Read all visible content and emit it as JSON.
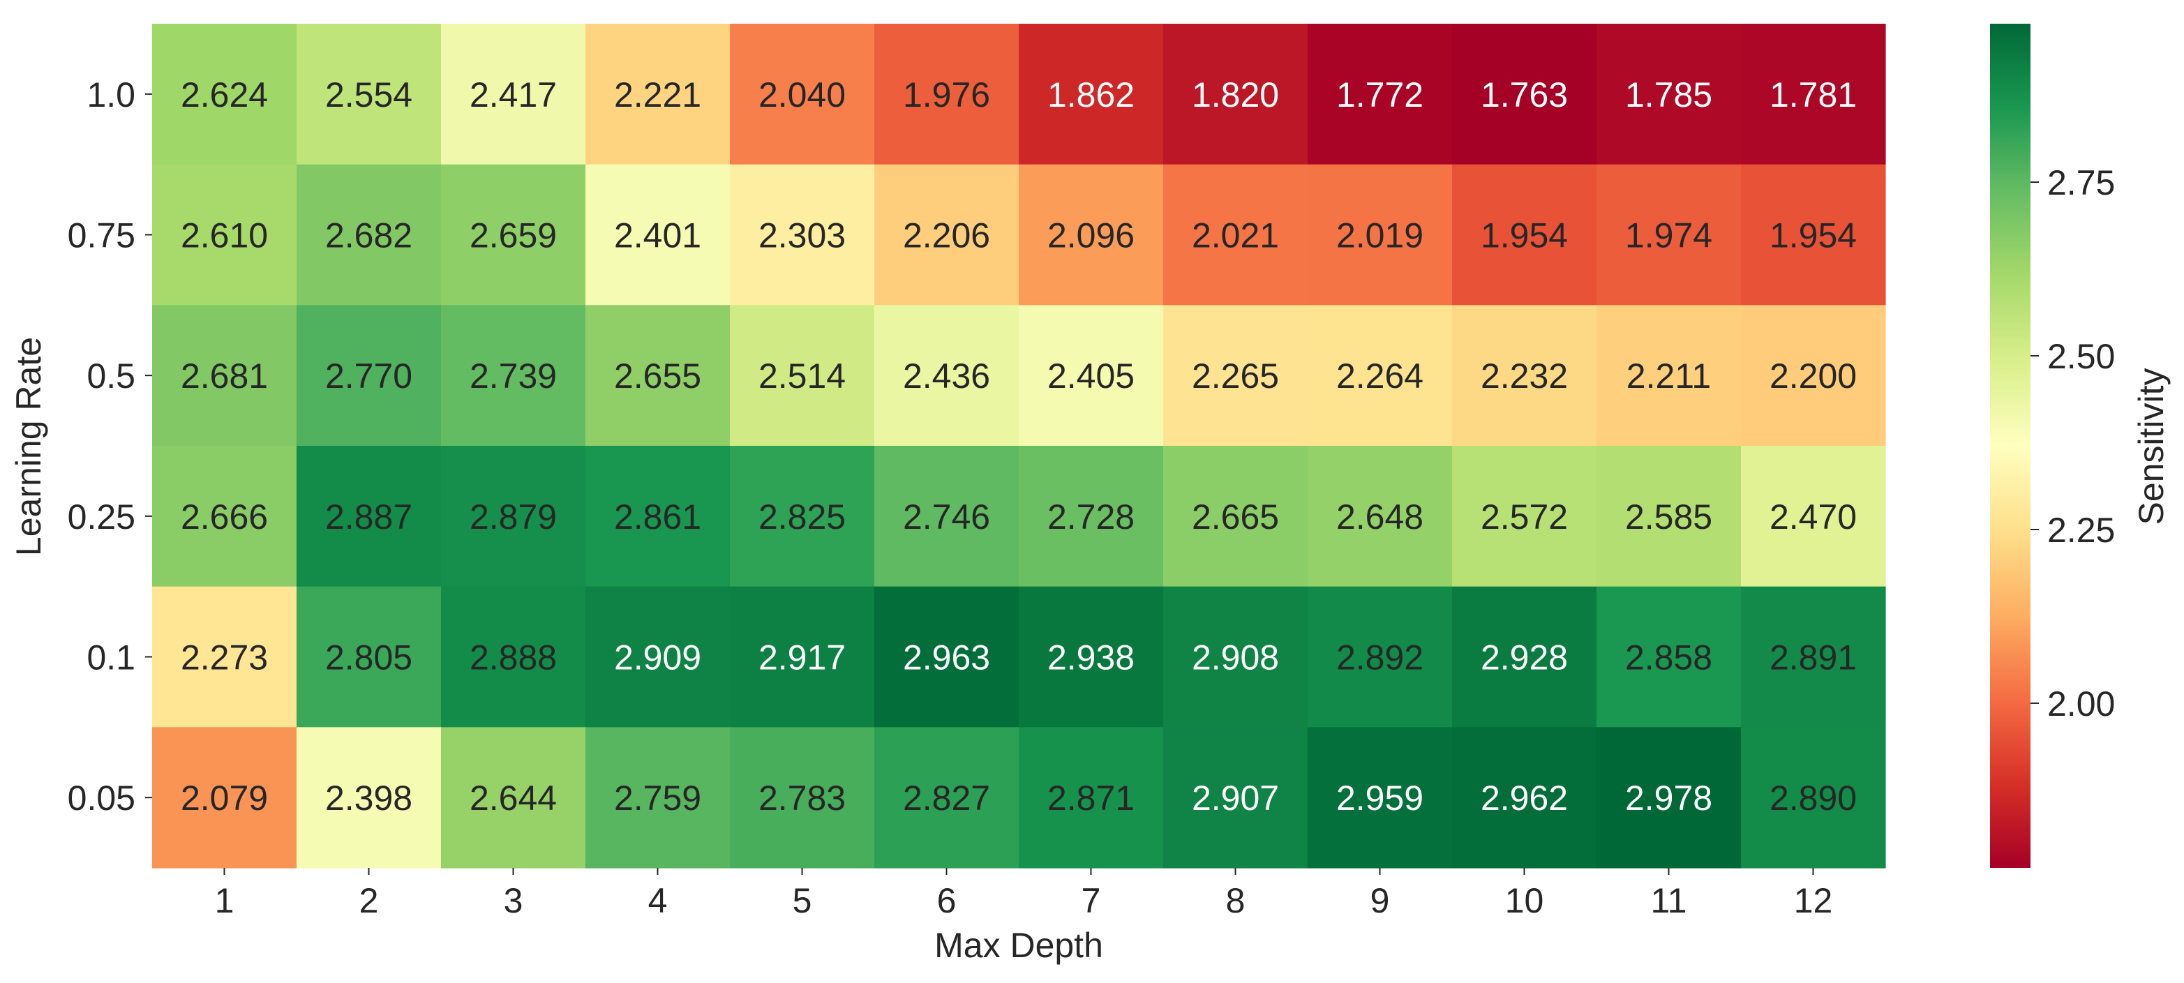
{
  "chart_data": {
    "type": "heatmap",
    "xlabel": "Max Depth",
    "ylabel": "Learning Rate",
    "x": [
      "1",
      "2",
      "3",
      "4",
      "5",
      "6",
      "7",
      "8",
      "9",
      "10",
      "11",
      "12"
    ],
    "y": [
      "1.0",
      "0.75",
      "0.5",
      "0.25",
      "0.1",
      "0.05"
    ],
    "values": [
      [
        2.624,
        2.554,
        2.417,
        2.221,
        2.04,
        1.976,
        1.862,
        1.82,
        1.772,
        1.763,
        1.785,
        1.781
      ],
      [
        2.61,
        2.682,
        2.659,
        2.401,
        2.303,
        2.206,
        2.096,
        2.021,
        2.019,
        1.954,
        1.974,
        1.954
      ],
      [
        2.681,
        2.77,
        2.739,
        2.655,
        2.514,
        2.436,
        2.405,
        2.265,
        2.264,
        2.232,
        2.211,
        2.2
      ],
      [
        2.666,
        2.887,
        2.879,
        2.861,
        2.825,
        2.746,
        2.728,
        2.665,
        2.648,
        2.572,
        2.585,
        2.47
      ],
      [
        2.273,
        2.805,
        2.888,
        2.909,
        2.917,
        2.963,
        2.938,
        2.908,
        2.892,
        2.928,
        2.858,
        2.891
      ],
      [
        2.079,
        2.398,
        2.644,
        2.759,
        2.783,
        2.827,
        2.871,
        2.907,
        2.959,
        2.962,
        2.978,
        2.89
      ]
    ],
    "colorbar": {
      "label": "Sensitivity",
      "colormap": "RdYlGn",
      "range": [
        1.763,
        2.978
      ],
      "ticks": [
        2.0,
        2.25,
        2.5,
        2.75
      ],
      "tick_labels": [
        "2.00",
        "2.25",
        "2.50",
        "2.75"
      ]
    },
    "grid": false,
    "legend": "colorbar-right"
  }
}
